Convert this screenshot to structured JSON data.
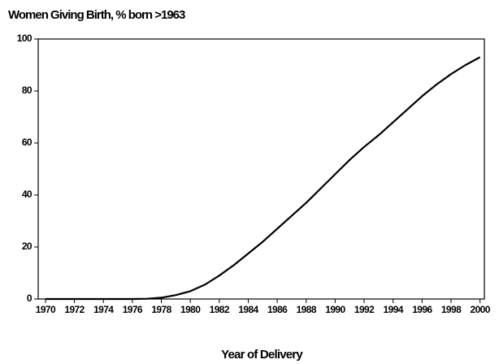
{
  "chart_data": {
    "type": "line",
    "title": "Women Giving Birth, % born >1963",
    "x_label": "Year of Delivery",
    "x": [
      1970,
      1971,
      1972,
      1973,
      1974,
      1975,
      1976,
      1977,
      1978,
      1979,
      1980,
      1981,
      1982,
      1983,
      1984,
      1985,
      1986,
      1987,
      1988,
      1989,
      1990,
      1991,
      1992,
      1993,
      1994,
      1995,
      1996,
      1997,
      1998,
      1999,
      2000
    ],
    "series": [
      {
        "color": "#000000",
        "values": [
          0,
          0,
          0,
          0,
          0,
          0,
          0,
          0.1,
          0.5,
          1.5,
          3,
          5.5,
          9,
          13,
          17.5,
          22,
          27,
          32,
          37,
          42.5,
          48,
          53.5,
          58.5,
          63,
          68,
          73,
          78,
          82.5,
          86.5,
          90,
          93
        ]
      }
    ],
    "xlim": [
      1969.5,
      2000.3
    ],
    "xticks": [
      1970,
      1972,
      1974,
      1976,
      1978,
      1980,
      1982,
      1984,
      1986,
      1988,
      1990,
      1992,
      1994,
      1996,
      1998,
      2000
    ],
    "ylim": [
      0,
      100
    ],
    "yticks": [
      0,
      20,
      40,
      60,
      80,
      100
    ],
    "grid": false
  }
}
